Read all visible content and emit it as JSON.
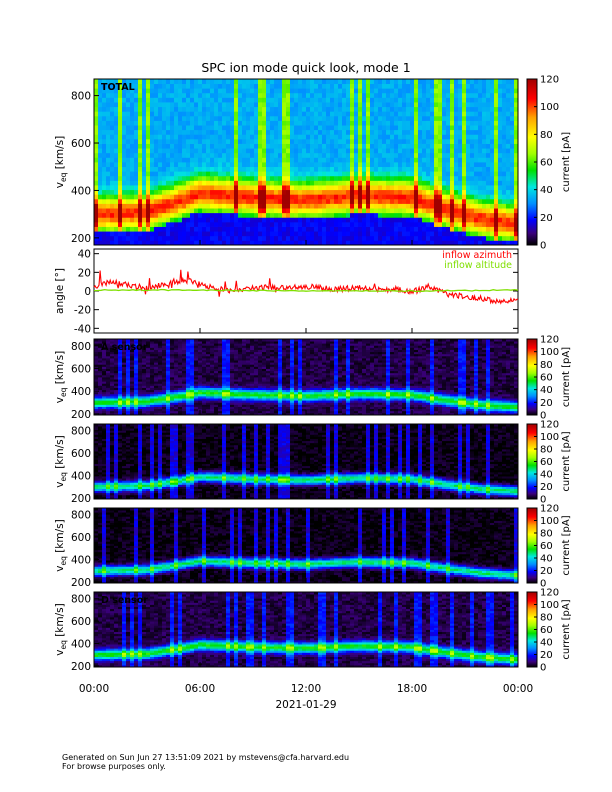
{
  "title": "SPC ion mode quick look, mode 1",
  "footer": {
    "line1": "Generated on Sun Jun 27 13:51:09 2021 by mstevens@cfa.harvard.edu",
    "line2": "For browse purposes only."
  },
  "chart_data": [
    {
      "type": "heatmap",
      "panel_label": "TOTAL",
      "ylabel": "v_eq [km/s]",
      "y_ticks": [
        200,
        400,
        600,
        800
      ],
      "ylim": [
        170,
        870
      ],
      "colorbar": {
        "label": "current [pA]",
        "ticks": [
          0,
          20,
          40,
          60,
          80,
          100,
          120
        ],
        "range": [
          0,
          120
        ]
      },
      "ridge_speed_km_s": {
        "x_hours": [
          0,
          3,
          5,
          6,
          9,
          12,
          15,
          18,
          20,
          22,
          24
        ],
        "v": [
          300,
          310,
          360,
          390,
          370,
          360,
          380,
          370,
          320,
          280,
          260
        ]
      }
    },
    {
      "type": "line",
      "ylabel": "angle [°]",
      "y_ticks": [
        -40,
        -20,
        0,
        20,
        40
      ],
      "ylim": [
        -45,
        45
      ],
      "series": [
        {
          "name": "inflow azimuth",
          "color": "#ff0000",
          "x_hours": [
            0,
            1,
            2,
            3,
            4,
            5,
            6,
            7,
            8,
            9,
            10,
            11,
            12,
            13,
            14,
            15,
            16,
            17,
            18,
            19,
            20,
            21,
            22,
            23,
            24
          ],
          "values": [
            5,
            10,
            6,
            3,
            8,
            12,
            8,
            2,
            0,
            3,
            4,
            4,
            5,
            3,
            2,
            4,
            1,
            2,
            -1,
            5,
            -4,
            -6,
            -8,
            -12,
            -10
          ]
        },
        {
          "name": "inflow altitude",
          "color": "#7fdf00",
          "x_hours": [
            0,
            6,
            12,
            18,
            24
          ],
          "values": [
            1,
            1,
            0,
            0,
            1
          ]
        }
      ]
    },
    {
      "type": "heatmap",
      "panel_label": "A sensor",
      "ylabel": "v_eq [km/s]",
      "y_ticks": [
        200,
        400,
        600,
        800
      ],
      "ylim": [
        190,
        860
      ],
      "colorbar": {
        "label": "current [pA]",
        "ticks": [
          0,
          20,
          40,
          60,
          80,
          100,
          120
        ],
        "range": [
          0,
          120
        ]
      }
    },
    {
      "type": "heatmap",
      "panel_label": "",
      "ylabel": "v_eq [km/s]",
      "y_ticks": [
        200,
        400,
        600,
        800
      ],
      "ylim": [
        190,
        860
      ],
      "colorbar": {
        "label": "current [pA]",
        "ticks": [
          0,
          20,
          40,
          60,
          80,
          100,
          120
        ],
        "range": [
          0,
          120
        ]
      }
    },
    {
      "type": "heatmap",
      "panel_label": "",
      "ylabel": "v_eq [km/s]",
      "y_ticks": [
        200,
        400,
        600,
        800
      ],
      "ylim": [
        190,
        860
      ],
      "colorbar": {
        "label": "current [pA]",
        "ticks": [
          0,
          20,
          40,
          60,
          80,
          100,
          120
        ],
        "range": [
          0,
          120
        ]
      }
    },
    {
      "type": "heatmap",
      "panel_label": "D sensor",
      "ylabel": "v_eq [km/s]",
      "y_ticks": [
        200,
        400,
        600,
        800
      ],
      "ylim": [
        190,
        860
      ],
      "colorbar": {
        "label": "current [pA]",
        "ticks": [
          0,
          20,
          40,
          60,
          80,
          100,
          120
        ],
        "range": [
          0,
          120
        ]
      }
    }
  ],
  "x_axis": {
    "tick_labels": [
      "00:00",
      "06:00",
      "12:00",
      "18:00",
      "00:00"
    ],
    "tick_hours": [
      0,
      6,
      12,
      18,
      24
    ],
    "date_label": "2021-01-29"
  }
}
